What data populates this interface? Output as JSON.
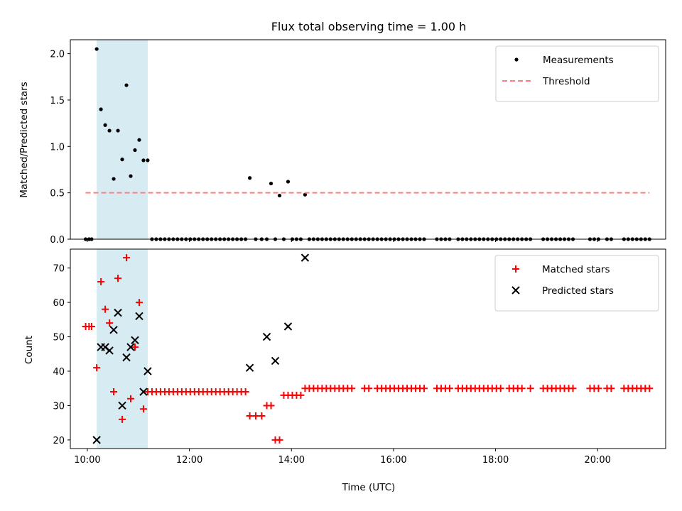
{
  "chart_data": [
    {
      "type": "scatter",
      "title": "Flux total observing time = 1.00 h",
      "xlabel": "",
      "ylabel": "Matched/Predicted stars",
      "xlim": [
        "09:40",
        "21:20"
      ],
      "ylim": [
        0,
        2.15
      ],
      "xticks": [
        "10:00",
        "12:00",
        "14:00",
        "16:00",
        "18:00",
        "20:00"
      ],
      "yticks": [
        "0.0",
        "0.5",
        "1.0",
        "1.5",
        "2.0"
      ],
      "shaded_span": [
        "10:11",
        "11:11"
      ],
      "legend": {
        "placement": "upper right",
        "entries": [
          "Measurements",
          "Threshold"
        ]
      },
      "series": [
        {
          "name": "Measurements",
          "marker": "dot",
          "color": "#000000",
          "points": [
            [
              "09:58",
              0
            ],
            [
              "10:02",
              0
            ],
            [
              "10:05",
              0
            ],
            [
              "10:11",
              2.05
            ],
            [
              "10:16",
              1.4
            ],
            [
              "10:21",
              1.23
            ],
            [
              "10:26",
              1.17
            ],
            [
              "10:31",
              0.65
            ],
            [
              "10:36",
              1.17
            ],
            [
              "10:41",
              0.86
            ],
            [
              "10:46",
              1.66
            ],
            [
              "10:51",
              0.68
            ],
            [
              "10:56",
              0.96
            ],
            [
              "11:01",
              1.07
            ],
            [
              "11:06",
              0.85
            ],
            [
              "11:11",
              0.85
            ],
            [
              "11:16",
              0
            ],
            [
              "11:21",
              0
            ],
            [
              "11:26",
              0
            ],
            [
              "11:31",
              0
            ],
            [
              "11:36",
              0
            ],
            [
              "11:41",
              0
            ],
            [
              "11:46",
              0
            ],
            [
              "11:51",
              0
            ],
            [
              "11:56",
              0
            ],
            [
              "12:01",
              0
            ],
            [
              "12:06",
              0
            ],
            [
              "12:11",
              0
            ],
            [
              "12:16",
              0
            ],
            [
              "12:21",
              0
            ],
            [
              "12:26",
              0
            ],
            [
              "12:31",
              0
            ],
            [
              "12:36",
              0
            ],
            [
              "12:41",
              0
            ],
            [
              "12:46",
              0
            ],
            [
              "12:51",
              0
            ],
            [
              "12:56",
              0
            ],
            [
              "13:01",
              0
            ],
            [
              "13:06",
              0
            ],
            [
              "13:11",
              0.66
            ],
            [
              "13:18",
              0
            ],
            [
              "13:25",
              0
            ],
            [
              "13:31",
              0
            ],
            [
              "13:36",
              0.6
            ],
            [
              "13:41",
              0
            ],
            [
              "13:46",
              0.47
            ],
            [
              "13:51",
              0
            ],
            [
              "13:56",
              0.62
            ],
            [
              "14:01",
              0
            ],
            [
              "14:06",
              0
            ],
            [
              "14:11",
              0
            ],
            [
              "14:16",
              0.48
            ],
            [
              "14:21",
              0
            ],
            [
              "14:26",
              0
            ],
            [
              "14:31",
              0
            ],
            [
              "14:36",
              0
            ],
            [
              "14:41",
              0
            ],
            [
              "14:46",
              0
            ],
            [
              "14:51",
              0
            ],
            [
              "14:56",
              0
            ],
            [
              "15:01",
              0
            ],
            [
              "15:06",
              0
            ],
            [
              "15:11",
              0
            ],
            [
              "15:16",
              0
            ],
            [
              "15:21",
              0
            ],
            [
              "15:26",
              0
            ],
            [
              "15:31",
              0
            ],
            [
              "15:36",
              0
            ],
            [
              "15:41",
              0
            ],
            [
              "15:46",
              0
            ],
            [
              "15:51",
              0
            ],
            [
              "15:56",
              0
            ],
            [
              "16:01",
              0
            ],
            [
              "16:06",
              0
            ],
            [
              "16:11",
              0
            ],
            [
              "16:16",
              0
            ],
            [
              "16:21",
              0
            ],
            [
              "16:26",
              0
            ],
            [
              "16:31",
              0
            ],
            [
              "16:36",
              0
            ],
            [
              "16:51",
              0
            ],
            [
              "16:56",
              0
            ],
            [
              "17:01",
              0
            ],
            [
              "17:06",
              0
            ],
            [
              "17:16",
              0
            ],
            [
              "17:21",
              0
            ],
            [
              "17:26",
              0
            ],
            [
              "17:31",
              0
            ],
            [
              "17:36",
              0
            ],
            [
              "17:41",
              0
            ],
            [
              "17:46",
              0
            ],
            [
              "17:51",
              0
            ],
            [
              "17:56",
              0
            ],
            [
              "18:01",
              0
            ],
            [
              "18:06",
              0
            ],
            [
              "18:11",
              0
            ],
            [
              "18:16",
              0
            ],
            [
              "18:21",
              0
            ],
            [
              "18:26",
              0
            ],
            [
              "18:31",
              0
            ],
            [
              "18:36",
              0
            ],
            [
              "18:41",
              0
            ],
            [
              "18:56",
              0
            ],
            [
              "19:01",
              0
            ],
            [
              "19:06",
              0
            ],
            [
              "19:11",
              0
            ],
            [
              "19:16",
              0
            ],
            [
              "19:21",
              0
            ],
            [
              "19:26",
              0
            ],
            [
              "19:31",
              0
            ],
            [
              "19:51",
              0
            ],
            [
              "19:56",
              0
            ],
            [
              "20:01",
              0
            ],
            [
              "20:11",
              0
            ],
            [
              "20:16",
              0
            ],
            [
              "20:31",
              0
            ],
            [
              "20:36",
              0
            ],
            [
              "20:41",
              0
            ],
            [
              "20:46",
              0
            ],
            [
              "20:51",
              0
            ],
            [
              "20:56",
              0
            ],
            [
              "21:01",
              0
            ]
          ]
        },
        {
          "name": "Threshold",
          "marker": "dashed-line",
          "color": "#ff7f7f",
          "points": [
            [
              "09:58",
              0.5
            ],
            [
              "21:01",
              0.5
            ]
          ]
        }
      ]
    },
    {
      "type": "scatter",
      "title": "",
      "xlabel": "Time (UTC)",
      "ylabel": "Count",
      "xlim": [
        "09:40",
        "21:20"
      ],
      "ylim": [
        17.5,
        75.5
      ],
      "xticks": [
        "10:00",
        "12:00",
        "14:00",
        "16:00",
        "18:00",
        "20:00"
      ],
      "yticks": [
        "20",
        "30",
        "40",
        "50",
        "60",
        "70"
      ],
      "shaded_span": [
        "10:11",
        "11:11"
      ],
      "legend": {
        "placement": "upper right",
        "entries": [
          "Matched stars",
          "Predicted stars"
        ]
      },
      "series": [
        {
          "name": "Matched stars",
          "marker": "plus",
          "color": "#ff0000",
          "points": [
            [
              "09:58",
              53
            ],
            [
              "10:02",
              53
            ],
            [
              "10:05",
              53
            ],
            [
              "10:11",
              41
            ],
            [
              "10:16",
              66
            ],
            [
              "10:21",
              58
            ],
            [
              "10:26",
              54
            ],
            [
              "10:31",
              34
            ],
            [
              "10:36",
              67
            ],
            [
              "10:41",
              26
            ],
            [
              "10:46",
              73
            ],
            [
              "10:51",
              32
            ],
            [
              "10:56",
              47
            ],
            [
              "11:01",
              60
            ],
            [
              "11:06",
              29
            ],
            [
              "11:11",
              34
            ],
            [
              "11:16",
              34
            ],
            [
              "11:21",
              34
            ],
            [
              "11:26",
              34
            ],
            [
              "11:31",
              34
            ],
            [
              "11:36",
              34
            ],
            [
              "11:41",
              34
            ],
            [
              "11:46",
              34
            ],
            [
              "11:51",
              34
            ],
            [
              "11:56",
              34
            ],
            [
              "12:01",
              34
            ],
            [
              "12:06",
              34
            ],
            [
              "12:11",
              34
            ],
            [
              "12:16",
              34
            ],
            [
              "12:21",
              34
            ],
            [
              "12:26",
              34
            ],
            [
              "12:31",
              34
            ],
            [
              "12:36",
              34
            ],
            [
              "12:41",
              34
            ],
            [
              "12:46",
              34
            ],
            [
              "12:51",
              34
            ],
            [
              "12:56",
              34
            ],
            [
              "13:01",
              34
            ],
            [
              "13:06",
              34
            ],
            [
              "13:11",
              27
            ],
            [
              "13:18",
              27
            ],
            [
              "13:25",
              27
            ],
            [
              "13:31",
              30
            ],
            [
              "13:36",
              30
            ],
            [
              "13:41",
              20
            ],
            [
              "13:46",
              20
            ],
            [
              "13:51",
              33
            ],
            [
              "13:56",
              33
            ],
            [
              "14:01",
              33
            ],
            [
              "14:06",
              33
            ],
            [
              "14:11",
              33
            ],
            [
              "14:16",
              35
            ],
            [
              "14:21",
              35
            ],
            [
              "14:26",
              35
            ],
            [
              "14:31",
              35
            ],
            [
              "14:36",
              35
            ],
            [
              "14:41",
              35
            ],
            [
              "14:46",
              35
            ],
            [
              "14:51",
              35
            ],
            [
              "14:56",
              35
            ],
            [
              "15:01",
              35
            ],
            [
              "15:06",
              35
            ],
            [
              "15:11",
              35
            ],
            [
              "15:26",
              35
            ],
            [
              "15:31",
              35
            ],
            [
              "15:41",
              35
            ],
            [
              "15:46",
              35
            ],
            [
              "15:51",
              35
            ],
            [
              "15:56",
              35
            ],
            [
              "16:01",
              35
            ],
            [
              "16:06",
              35
            ],
            [
              "16:11",
              35
            ],
            [
              "16:16",
              35
            ],
            [
              "16:21",
              35
            ],
            [
              "16:26",
              35
            ],
            [
              "16:31",
              35
            ],
            [
              "16:36",
              35
            ],
            [
              "16:51",
              35
            ],
            [
              "16:56",
              35
            ],
            [
              "17:01",
              35
            ],
            [
              "17:06",
              35
            ],
            [
              "17:16",
              35
            ],
            [
              "17:21",
              35
            ],
            [
              "17:26",
              35
            ],
            [
              "17:31",
              35
            ],
            [
              "17:36",
              35
            ],
            [
              "17:41",
              35
            ],
            [
              "17:46",
              35
            ],
            [
              "17:51",
              35
            ],
            [
              "17:56",
              35
            ],
            [
              "18:01",
              35
            ],
            [
              "18:06",
              35
            ],
            [
              "18:16",
              35
            ],
            [
              "18:21",
              35
            ],
            [
              "18:26",
              35
            ],
            [
              "18:31",
              35
            ],
            [
              "18:41",
              35
            ],
            [
              "18:56",
              35
            ],
            [
              "19:01",
              35
            ],
            [
              "19:06",
              35
            ],
            [
              "19:11",
              35
            ],
            [
              "19:16",
              35
            ],
            [
              "19:21",
              35
            ],
            [
              "19:26",
              35
            ],
            [
              "19:31",
              35
            ],
            [
              "19:51",
              35
            ],
            [
              "19:56",
              35
            ],
            [
              "20:01",
              35
            ],
            [
              "20:11",
              35
            ],
            [
              "20:16",
              35
            ],
            [
              "20:31",
              35
            ],
            [
              "20:36",
              35
            ],
            [
              "20:41",
              35
            ],
            [
              "20:46",
              35
            ],
            [
              "20:51",
              35
            ],
            [
              "20:56",
              35
            ],
            [
              "21:01",
              35
            ]
          ]
        },
        {
          "name": "Predicted stars",
          "marker": "x",
          "color": "#000000",
          "points": [
            [
              "10:11",
              20
            ],
            [
              "10:16",
              47
            ],
            [
              "10:21",
              47
            ],
            [
              "10:26",
              46
            ],
            [
              "10:31",
              52
            ],
            [
              "10:36",
              57
            ],
            [
              "10:41",
              30
            ],
            [
              "10:46",
              44
            ],
            [
              "10:51",
              47
            ],
            [
              "10:56",
              49
            ],
            [
              "11:01",
              56
            ],
            [
              "11:06",
              34
            ],
            [
              "11:11",
              40
            ],
            [
              "13:11",
              41
            ],
            [
              "13:31",
              50
            ],
            [
              "13:41",
              43
            ],
            [
              "13:56",
              53
            ],
            [
              "14:16",
              73
            ]
          ]
        }
      ]
    }
  ],
  "colors": {
    "shade": "#add8e6",
    "threshold": "#ff7f7f",
    "matched": "#ff0000",
    "predicted": "#000000",
    "measurement": "#000000"
  }
}
